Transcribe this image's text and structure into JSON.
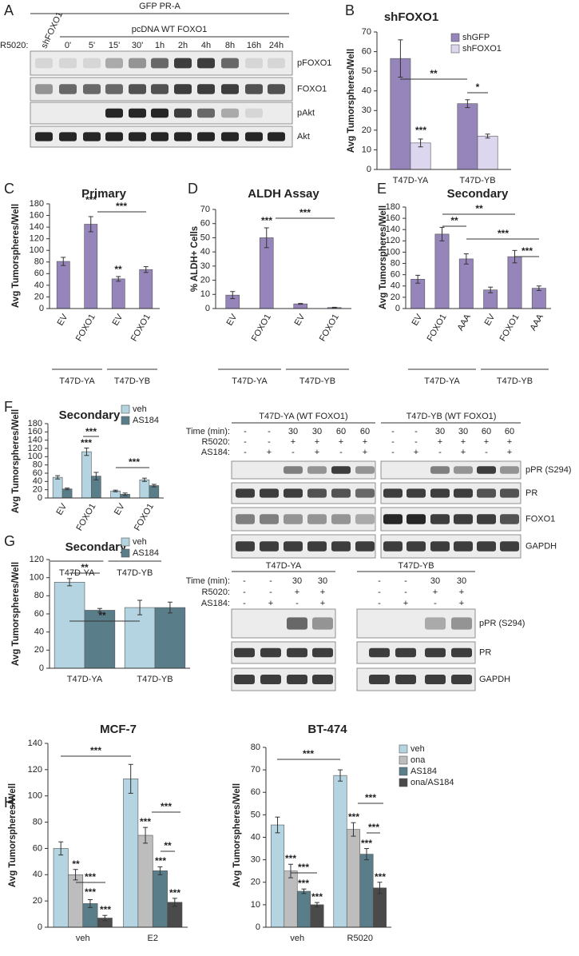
{
  "chart_data": [
    {
      "type": "bar",
      "panel": "B",
      "title": "shFOXO1",
      "y_label": "Avg Tumorspheres/Well",
      "categories": [
        "T47D-YA",
        "T47D-YB"
      ],
      "series": [
        {
          "name": "shGFP",
          "color": "#9585bb",
          "values": [
            56.5,
            33.5
          ],
          "errors": [
            9.5,
            2
          ]
        },
        {
          "name": "shFOXO1",
          "color": "#dcd6ee",
          "values": [
            13.5,
            17
          ],
          "errors": [
            2,
            1
          ]
        }
      ],
      "ylim": [
        0,
        70
      ],
      "yticks": [
        0,
        10,
        20,
        30,
        40,
        50,
        60,
        70
      ],
      "legend": "upper right",
      "annotations": [
        "***",
        "**",
        "*"
      ]
    },
    {
      "type": "bar",
      "panel": "C",
      "title": "Primary",
      "y_label": "Avg Tumorspheres/Well",
      "categories": [
        "EV",
        "FOXO1",
        "EV",
        "FOXO1"
      ],
      "groups": [
        "T47D-YA",
        "T47D-YB"
      ],
      "values": [
        81,
        145,
        51,
        67
      ],
      "errors": [
        7,
        13,
        4,
        5
      ],
      "color": "#9585bb",
      "ylim": [
        0,
        180
      ],
      "yticks": [
        0,
        20,
        40,
        60,
        80,
        100,
        120,
        140,
        160,
        180
      ],
      "annotations": [
        "***",
        "**",
        "***"
      ]
    },
    {
      "type": "bar",
      "panel": "D",
      "title": "ALDH Assay",
      "y_label": "% ALDH+ Cells",
      "categories": [
        "EV",
        "FOXO1",
        "EV",
        "FOXO1"
      ],
      "groups": [
        "T47D-YA",
        "T47D-YB"
      ],
      "values": [
        9.5,
        50,
        3.3,
        0.7
      ],
      "errors": [
        2.5,
        7,
        0.3,
        0.2
      ],
      "color": "#9585bb",
      "ylim": [
        0,
        70
      ],
      "yticks": [
        0,
        10,
        20,
        30,
        40,
        50,
        60,
        70
      ],
      "annotations": [
        "***",
        "***"
      ]
    },
    {
      "type": "bar",
      "panel": "E",
      "title": "Secondary",
      "y_label": "Avg Tumorspheres/Well",
      "categories": [
        "EV",
        "FOXO1",
        "AAA",
        "EV",
        "FOXO1",
        "AAA"
      ],
      "groups": [
        "T47D-YA",
        "T47D-YB"
      ],
      "values": [
        52,
        132,
        88,
        33,
        92,
        36
      ],
      "errors": [
        7,
        12,
        9,
        5,
        11,
        4
      ],
      "color": "#9585bb",
      "ylim": [
        0,
        180
      ],
      "yticks": [
        0,
        20,
        40,
        60,
        80,
        100,
        120,
        140,
        160,
        180
      ],
      "annotations": [
        "**",
        "**",
        "***",
        "***"
      ]
    },
    {
      "type": "bar",
      "panel": "F",
      "title": "Secondary",
      "y_label": "Avg Tumorspheres/Well",
      "categories": [
        "EV",
        "FOXO1",
        "EV",
        "FOXO1"
      ],
      "groups": [
        "T47D-YA",
        "T47D-YB"
      ],
      "series": [
        {
          "name": "veh",
          "color": "#b3d4e0",
          "values": [
            50,
            112,
            17,
            44
          ],
          "errors": [
            4,
            9,
            2,
            4
          ]
        },
        {
          "name": "AS184",
          "color": "#5a7d8a",
          "values": [
            22,
            53,
            9,
            30
          ],
          "errors": [
            2,
            9,
            3,
            3
          ]
        }
      ],
      "ylim": [
        0,
        180
      ],
      "yticks": [
        0,
        20,
        40,
        60,
        80,
        100,
        120,
        140,
        160,
        180
      ],
      "legend": "upper right",
      "annotations": [
        "***",
        "***",
        "***"
      ]
    },
    {
      "type": "bar",
      "panel": "G",
      "title": "Secondary",
      "y_label": "Avg Tumorspheres/Well",
      "categories": [
        "T47D-YA",
        "T47D-YB"
      ],
      "series": [
        {
          "name": "veh",
          "color": "#b3d4e0",
          "values": [
            95,
            67
          ],
          "errors": [
            4,
            8
          ]
        },
        {
          "name": "AS184",
          "color": "#5a7d8a",
          "values": [
            64,
            67
          ],
          "errors": [
            2,
            6
          ]
        }
      ],
      "ylim": [
        0,
        120
      ],
      "yticks": [
        0,
        20,
        40,
        60,
        80,
        100,
        120
      ],
      "legend": "upper right",
      "annotations": [
        "**",
        "**"
      ]
    },
    {
      "type": "bar",
      "panel": "H",
      "title": "MCF-7",
      "y_label": "Avg Tumorspheres/Well",
      "categories": [
        "veh",
        "E2"
      ],
      "series": [
        {
          "name": "veh",
          "color": "#b3d4e0",
          "values": [
            60,
            113
          ],
          "errors": [
            5,
            11
          ]
        },
        {
          "name": "ona",
          "color": "#bdbdbd",
          "values": [
            40,
            70
          ],
          "errors": [
            4,
            6
          ]
        },
        {
          "name": "AS184",
          "color": "#5a7d8a",
          "values": [
            18,
            43
          ],
          "errors": [
            3,
            3
          ]
        },
        {
          "name": "ona/AS184",
          "color": "#4a4a4a",
          "values": [
            7,
            19
          ],
          "errors": [
            2,
            3
          ]
        }
      ],
      "ylim": [
        0,
        140
      ],
      "yticks": [
        0,
        20,
        40,
        60,
        80,
        100,
        120,
        140
      ],
      "annotations": [
        "***",
        "**",
        "***",
        "***",
        "***",
        "***",
        "***",
        "***",
        "***",
        "**"
      ]
    },
    {
      "type": "bar",
      "title": "BT-474",
      "y_label": "Avg Tumorspheres/Well",
      "categories": [
        "veh",
        "R5020"
      ],
      "series": [
        {
          "name": "veh",
          "color": "#b3d4e0",
          "values": [
            45.5,
            67.5
          ],
          "errors": [
            3.5,
            2.5
          ]
        },
        {
          "name": "ona",
          "color": "#bdbdbd",
          "values": [
            25,
            43.5
          ],
          "errors": [
            3,
            3
          ]
        },
        {
          "name": "AS184",
          "color": "#5a7d8a",
          "values": [
            16,
            32.5
          ],
          "errors": [
            1,
            2.5
          ]
        },
        {
          "name": "ona/AS184",
          "color": "#4a4a4a",
          "values": [
            10,
            17.5
          ],
          "errors": [
            1,
            2.5
          ]
        }
      ],
      "ylim": [
        0,
        80
      ],
      "yticks": [
        0,
        10,
        20,
        30,
        40,
        50,
        60,
        70,
        80
      ],
      "legend": "right",
      "annotations": [
        "***",
        "***",
        "***",
        "***",
        "***",
        "***",
        "***",
        "***",
        "***",
        "***"
      ]
    }
  ],
  "blots": [
    {
      "panel": "A",
      "headers": [
        "GFP PR-A",
        "pcDNA WT FOXO1"
      ],
      "lane_label": "R5020:",
      "lanes": [
        "shFOXO1",
        "0'",
        "5'",
        "15'",
        "30'",
        "1h",
        "2h",
        "4h",
        "8h",
        "16h",
        "24h"
      ],
      "rows": [
        "pFOXO1",
        "FOXO1",
        "pAkt",
        "Akt"
      ]
    },
    {
      "groups": [
        "T47D-YA (WT FOXO1)",
        "T47D-YB (WT FOXO1)"
      ],
      "conditions": [
        {
          "name": "Time (min):",
          "lanes": [
            "-",
            "-",
            "30",
            "30",
            "60",
            "60",
            "-",
            "-",
            "30",
            "30",
            "60",
            "60"
          ]
        },
        {
          "name": "R5020:",
          "lanes": [
            "-",
            "-",
            "+",
            "+",
            "+",
            "+",
            "-",
            "-",
            "+",
            "+",
            "+",
            "+"
          ]
        },
        {
          "name": "AS184:",
          "lanes": [
            "-",
            "+",
            "-",
            "+",
            "-",
            "+",
            "-",
            "+",
            "-",
            "+",
            "-",
            "+"
          ]
        }
      ],
      "rows": [
        "pPR (S294)",
        "PR",
        "FOXO1",
        "GAPDH"
      ]
    },
    {
      "groups": [
        "T47D-YA",
        "T47D-YB"
      ],
      "conditions": [
        {
          "name": "Time (min):",
          "lanes": [
            "-",
            "-",
            "30",
            "30",
            "-",
            "-",
            "30",
            "30"
          ]
        },
        {
          "name": "R5020:",
          "lanes": [
            "-",
            "-",
            "+",
            "+",
            "-",
            "-",
            "+",
            "+"
          ]
        },
        {
          "name": "AS184:",
          "lanes": [
            "-",
            "+",
            "-",
            "+",
            "-",
            "+",
            "-",
            "+"
          ]
        }
      ],
      "rows": [
        "pPR (S294)",
        "PR",
        "GAPDH"
      ]
    }
  ]
}
